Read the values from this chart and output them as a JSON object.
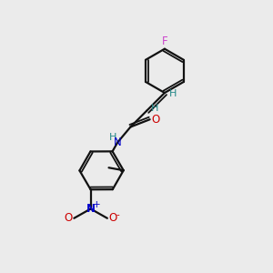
{
  "bg_color": "#ebebeb",
  "atom_colors": {
    "F": "#cc44cc",
    "O": "#cc0000",
    "N": "#0000cc",
    "C": "#000000",
    "H": "#228888"
  },
  "bond_color": "#111111",
  "lw": 1.6,
  "lw_inner": 1.3,
  "ring_r": 0.75,
  "figsize": [
    3.0,
    3.0
  ],
  "dpi": 100
}
